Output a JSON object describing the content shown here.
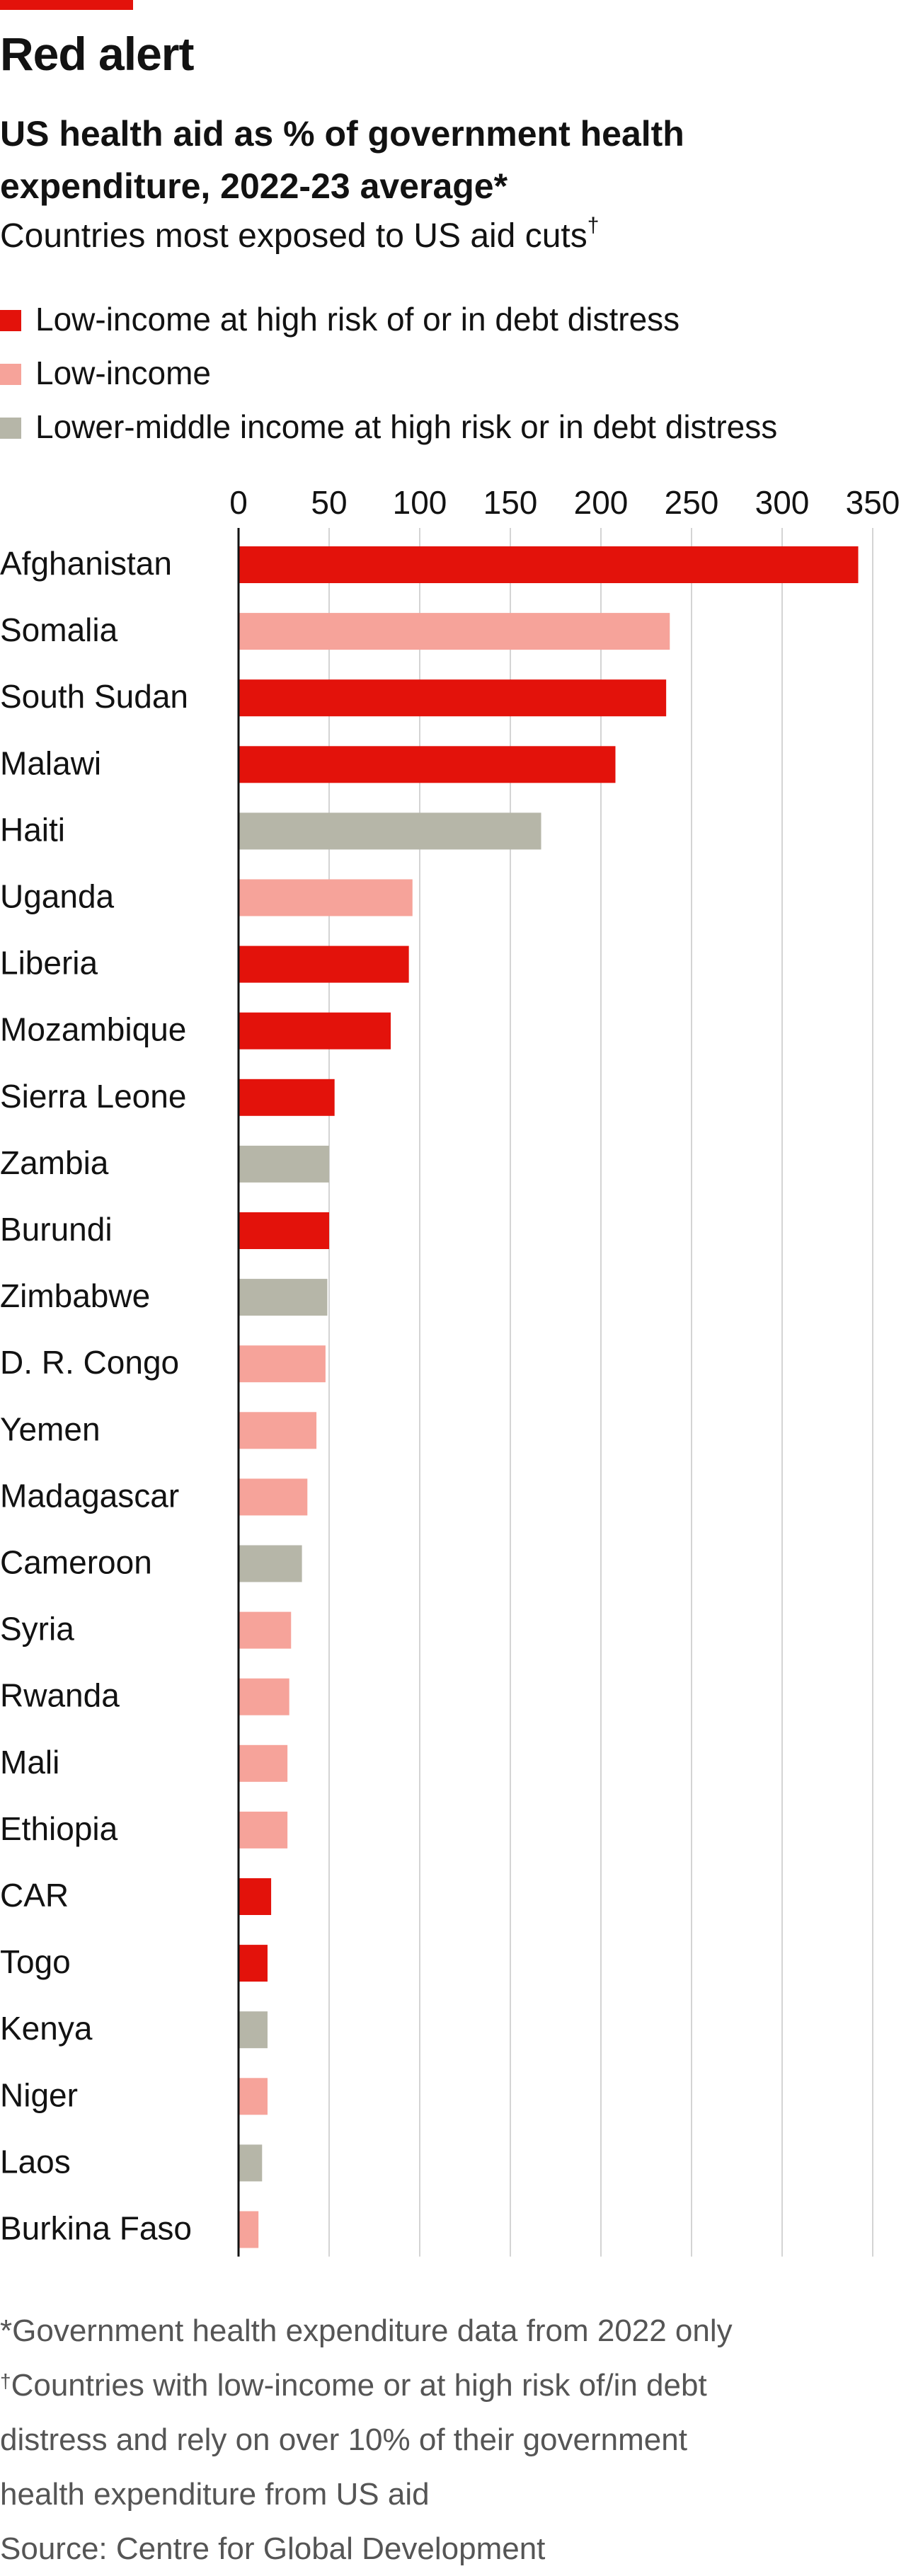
{
  "header": {
    "headline": "Red alert",
    "title": "US health aid as % of government health expenditure, 2022-23 average*",
    "subtitle": "Countries most exposed to US aid cuts",
    "subtitle_mark": "†"
  },
  "legend": [
    {
      "label": "Low-income at high risk of or in debt distress",
      "color": "#e3120b"
    },
    {
      "label": "Low-income",
      "color": "#f6a39a"
    },
    {
      "label": "Lower-middle income at high risk or in debt distress",
      "color": "#b6b6a8"
    }
  ],
  "chart_data": {
    "type": "bar",
    "orientation": "horizontal",
    "title": "US health aid as % of government health expenditure, 2022-23 average*",
    "subtitle": "Countries most exposed to US aid cuts†",
    "xlim": [
      0,
      350
    ],
    "xticks": [
      "0",
      "50",
      "100",
      "150",
      "200",
      "250",
      "300",
      "350"
    ],
    "grid": true,
    "legend_placement": "top-left",
    "categories": [
      "Afghanistan",
      "Somalia",
      "South Sudan",
      "Malawi",
      "Haiti",
      "Uganda",
      "Liberia",
      "Mozambique",
      "Sierra Leone",
      "Zambia",
      "Burundi",
      "Zimbabwe",
      "D. R. Congo",
      "Yemen",
      "Madagascar",
      "Cameroon",
      "Syria",
      "Rwanda",
      "Mali",
      "Ethiopia",
      "CAR",
      "Togo",
      "Kenya",
      "Niger",
      "Laos",
      "Burkina Faso"
    ],
    "values": [
      342,
      238,
      236,
      208,
      167,
      96,
      94,
      84,
      53,
      50,
      50,
      49,
      48,
      43,
      38,
      35,
      29,
      28,
      27,
      27,
      18,
      16,
      16,
      16,
      13,
      11
    ],
    "groups": [
      0,
      1,
      0,
      0,
      2,
      1,
      0,
      0,
      0,
      2,
      0,
      2,
      1,
      1,
      1,
      2,
      1,
      1,
      1,
      1,
      0,
      0,
      2,
      1,
      2,
      1
    ],
    "series_colors": [
      "#e3120b",
      "#f6a39a",
      "#b6b6a8"
    ]
  },
  "footnotes": {
    "star": "*Government health expenditure data from 2022 only",
    "dagger_mark": "†",
    "dagger_lines": [
      "Countries with low-income or at high risk of/in debt",
      "distress and rely on over 10% of their government",
      "health expenditure from US aid"
    ],
    "source": "Source: Centre for Global Development"
  }
}
